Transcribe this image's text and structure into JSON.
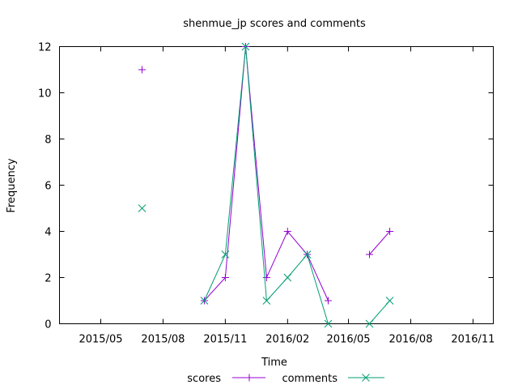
{
  "chart_data": {
    "type": "line",
    "title": "shenmue_jp scores and comments",
    "xlabel": "Time",
    "ylabel": "Frequency",
    "x_tick_labels": [
      "2015/05",
      "2015/08",
      "2015/11",
      "2016/02",
      "2016/05",
      "2016/08",
      "2016/11"
    ],
    "y_tick_labels": [
      "0",
      "2",
      "4",
      "6",
      "8",
      "10",
      "12"
    ],
    "ylim": [
      0,
      12
    ],
    "xlim": [
      "2015-03-01",
      "2016-12-01"
    ],
    "grid": false,
    "legend_position": "bottom",
    "series": [
      {
        "name": "scores",
        "color": "#9400d3",
        "marker": "plus",
        "points": [
          {
            "x": "2015-07-01",
            "y": 11
          },
          {
            "x": "2015-10-01",
            "y": 1
          },
          {
            "x": "2015-11-01",
            "y": 2
          },
          {
            "x": "2015-12-01",
            "y": 12
          },
          {
            "x": "2016-01-01",
            "y": 2
          },
          {
            "x": "2016-02-01",
            "y": 4
          },
          {
            "x": "2016-03-01",
            "y": 3
          },
          {
            "x": "2016-04-01",
            "y": 1
          },
          {
            "x": "2016-06-01",
            "y": 3
          },
          {
            "x": "2016-07-01",
            "y": 4
          }
        ]
      },
      {
        "name": "comments",
        "color": "#009e73",
        "marker": "cross",
        "points": [
          {
            "x": "2015-07-01",
            "y": 5
          },
          {
            "x": "2015-10-01",
            "y": 1
          },
          {
            "x": "2015-11-01",
            "y": 3
          },
          {
            "x": "2015-12-01",
            "y": 12
          },
          {
            "x": "2016-01-01",
            "y": 1
          },
          {
            "x": "2016-02-01",
            "y": 2
          },
          {
            "x": "2016-03-01",
            "y": 3
          },
          {
            "x": "2016-04-01",
            "y": 0
          },
          {
            "x": "2016-06-01",
            "y": 0
          },
          {
            "x": "2016-07-01",
            "y": 1
          }
        ]
      }
    ]
  }
}
